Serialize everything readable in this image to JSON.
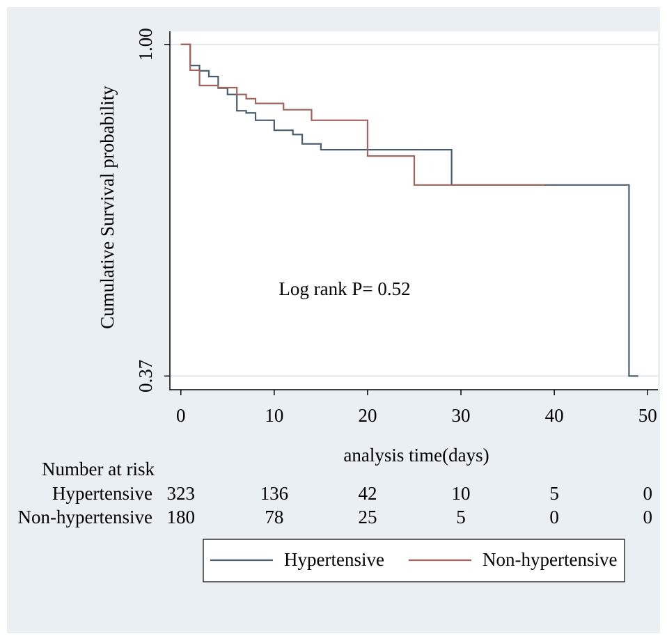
{
  "chart_data": {
    "type": "step",
    "y_label": "Cumulative Survival probability",
    "x_label": "analysis time(days)",
    "annotation": "Log rank P= 0.52",
    "xlim": [
      -1.1,
      51.1
    ],
    "ylim": [
      0.344,
      1.025
    ],
    "xticks": [
      0,
      10,
      20,
      30,
      40,
      50
    ],
    "yticks": [
      0.37,
      {
        "value": 1,
        "label": "1.00"
      }
    ],
    "grid": true,
    "series": [
      {
        "name": "Hypertensive",
        "color": "#4a5d70",
        "x": [
          0,
          1,
          2,
          3,
          4,
          5,
          6,
          7,
          8,
          10,
          12,
          13,
          15,
          29,
          48,
          49
        ],
        "values": [
          1,
          0.96,
          0.95,
          0.939,
          0.917,
          0.905,
          0.874,
          0.87,
          0.856,
          0.837,
          0.829,
          0.811,
          0.8,
          0.733,
          0.37,
          0.37
        ]
      },
      {
        "name": "Non-hypertensive",
        "color": "#a0645a",
        "x": [
          0,
          1,
          2,
          4,
          6,
          7,
          8,
          11,
          14,
          20,
          25,
          39
        ],
        "values": [
          1,
          0.951,
          0.922,
          0.918,
          0.905,
          0.897,
          0.888,
          0.876,
          0.856,
          0.788,
          0.733,
          0.733
        ]
      }
    ],
    "risk_table": {
      "title": "Number at risk",
      "rows": [
        {
          "name": "Hypertensive",
          "values": [
            323,
            136,
            42,
            10,
            5,
            0
          ]
        },
        {
          "name": "Non-hypertensive",
          "values": [
            180,
            78,
            25,
            5,
            0,
            0
          ]
        }
      ]
    }
  }
}
